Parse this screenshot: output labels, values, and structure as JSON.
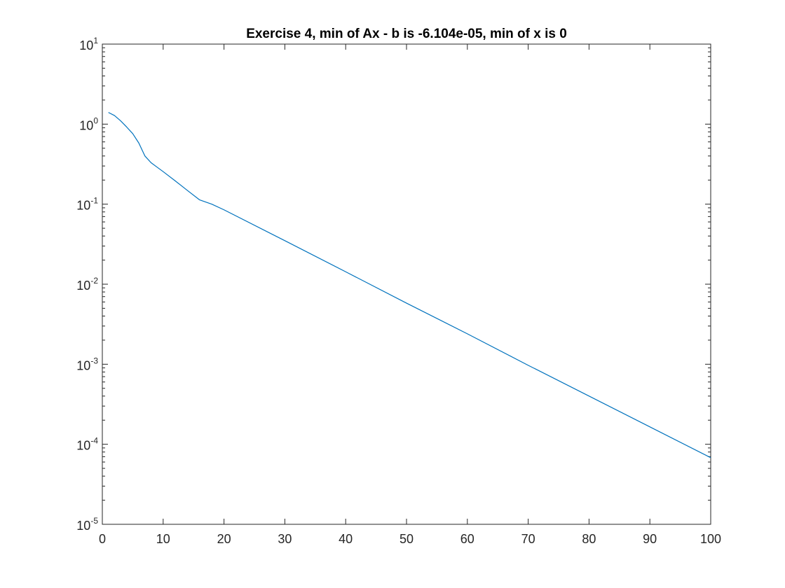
{
  "chart_data": {
    "type": "line",
    "title": "Exercise 4, min of Ax - b is -6.104e-05, min of x is 0",
    "xlabel": "",
    "ylabel": "",
    "xlim": [
      0,
      100
    ],
    "ylim": [
      1e-05,
      10
    ],
    "yscale": "log",
    "grid": false,
    "x_ticks": [
      0,
      10,
      20,
      30,
      40,
      50,
      60,
      70,
      80,
      90,
      100
    ],
    "x_tick_labels": [
      "0",
      "10",
      "20",
      "30",
      "40",
      "50",
      "60",
      "70",
      "80",
      "90",
      "100"
    ],
    "y_ticks": [
      1e-05,
      0.0001,
      0.001,
      0.01,
      0.1,
      1,
      10
    ],
    "y_tick_labels": [
      {
        "base": "10",
        "exp": "-5"
      },
      {
        "base": "10",
        "exp": "-4"
      },
      {
        "base": "10",
        "exp": "-3"
      },
      {
        "base": "10",
        "exp": "-2"
      },
      {
        "base": "10",
        "exp": "-1"
      },
      {
        "base": "10",
        "exp": "0"
      },
      {
        "base": "10",
        "exp": "1"
      }
    ],
    "series": [
      {
        "color": "#0072bd",
        "x": [
          1,
          2,
          3,
          4,
          5,
          6,
          7,
          8,
          9,
          10,
          12,
          14,
          16,
          18,
          20,
          30,
          40,
          50,
          60,
          70,
          80,
          90,
          100
        ],
        "y": [
          1.4,
          1.28,
          1.1,
          0.92,
          0.76,
          0.58,
          0.4,
          0.33,
          0.29,
          0.255,
          0.195,
          0.148,
          0.113,
          0.1,
          0.085,
          0.035,
          0.0143,
          0.0058,
          0.0024,
          0.00097,
          0.0004,
          0.000165,
          6.8e-05
        ]
      }
    ]
  }
}
